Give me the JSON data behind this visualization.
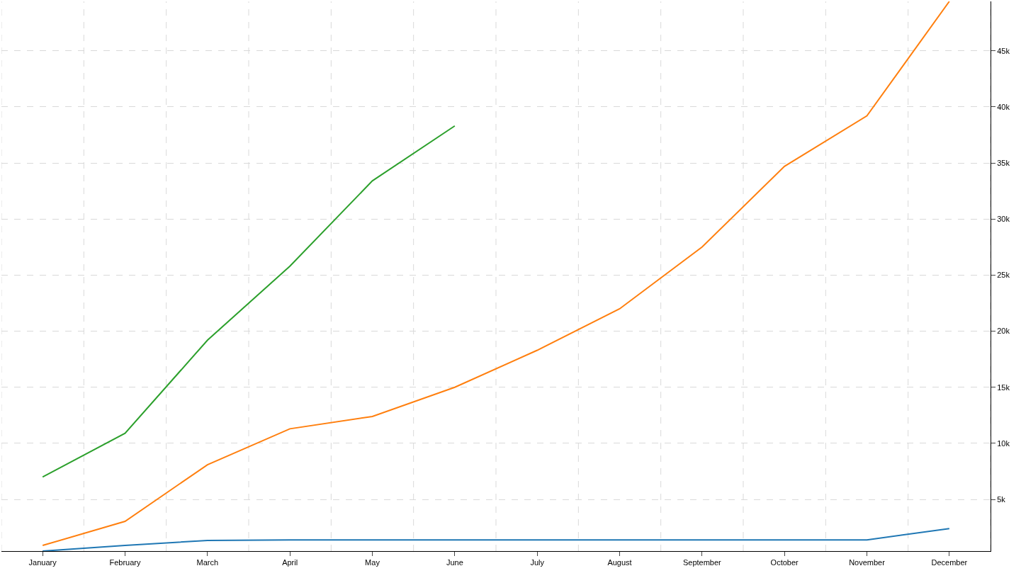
{
  "chart_data": {
    "type": "line",
    "categories": [
      "January",
      "February",
      "March",
      "April",
      "May",
      "June",
      "July",
      "August",
      "September",
      "October",
      "November",
      "December"
    ],
    "series": [
      {
        "color": "#1f77b4",
        "values": [
          400,
          900,
          1350,
          1400,
          1400,
          1400,
          1400,
          1400,
          1400,
          1400,
          1400,
          2400
        ]
      },
      {
        "color": "#ff7f0e",
        "values": [
          900,
          3050,
          8100,
          11300,
          12400,
          15000,
          18300,
          22000,
          27500,
          34700,
          39200,
          49400
        ]
      },
      {
        "color": "#2ca02c",
        "values": [
          7000,
          10900,
          19200,
          25800,
          33400,
          38300,
          null,
          null,
          null,
          null,
          null,
          null
        ]
      }
    ],
    "ylim": [
      400,
      49400
    ],
    "yticks": [
      {
        "value": 5000,
        "label": "5k"
      },
      {
        "value": 10000,
        "label": "10k"
      },
      {
        "value": 15000,
        "label": "15k"
      },
      {
        "value": 20000,
        "label": "20k"
      },
      {
        "value": 25000,
        "label": "25k"
      },
      {
        "value": 30000,
        "label": "30k"
      },
      {
        "value": 35000,
        "label": "35k"
      },
      {
        "value": 40000,
        "label": "40k"
      },
      {
        "value": 45000,
        "label": "45k"
      }
    ],
    "grid": true,
    "legend": false,
    "marker": "none",
    "line_style": "solid"
  }
}
